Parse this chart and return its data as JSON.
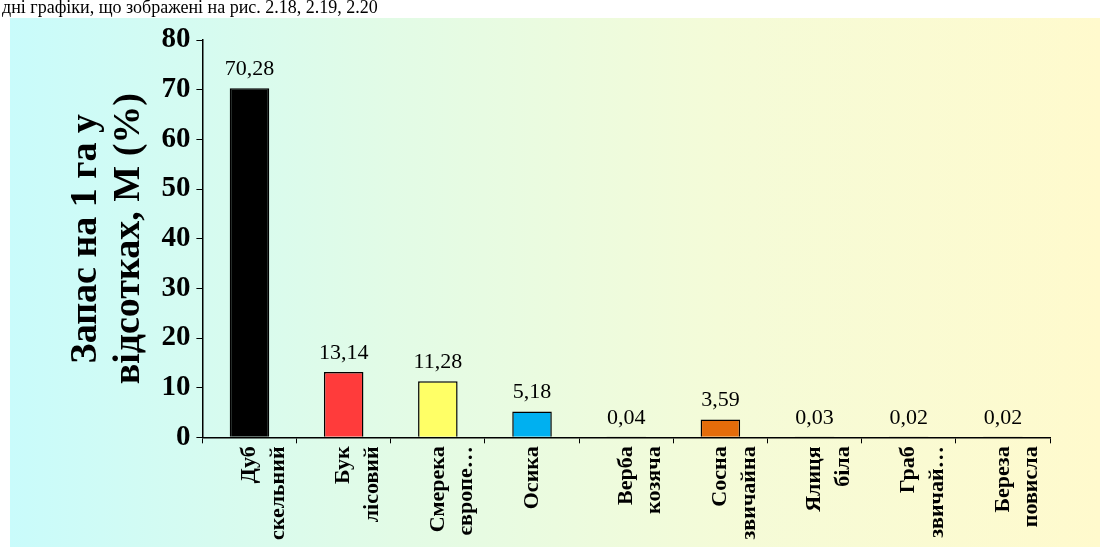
{
  "chart_data": {
    "type": "bar",
    "ylabel": "Запас на 1 га у відсотках, М (%)",
    "annotations": [
      "дні графіки, що зображені на рис. 2.18, 2.19, 2.20"
    ],
    "categories": [
      "Дуб скельний",
      "Бук лісовий",
      "Смерека європе…",
      "Осика",
      "Верба козяча",
      "Сосна звичайна",
      "Ялиця біла",
      "Граб звичай…",
      "Береза повисла"
    ],
    "values": [
      70.28,
      13.14,
      11.28,
      5.18,
      0.04,
      3.59,
      0.03,
      0.02,
      0.02
    ],
    "value_labels": [
      "70,28",
      "13,14",
      "11,28",
      "5,18",
      "0,04",
      "3,59",
      "0,03",
      "0,02",
      "0,02"
    ],
    "colors": [
      "#000000",
      "#ff3b3b",
      "#ffff66",
      "#00b0f0",
      "#000000",
      "#e46c0a",
      "#000000",
      "#000000",
      "#000000"
    ],
    "ylim": [
      0,
      80
    ],
    "yticks": [
      0,
      10,
      20,
      30,
      40,
      50,
      60,
      70,
      80
    ],
    "grid": false,
    "legend": false
  }
}
